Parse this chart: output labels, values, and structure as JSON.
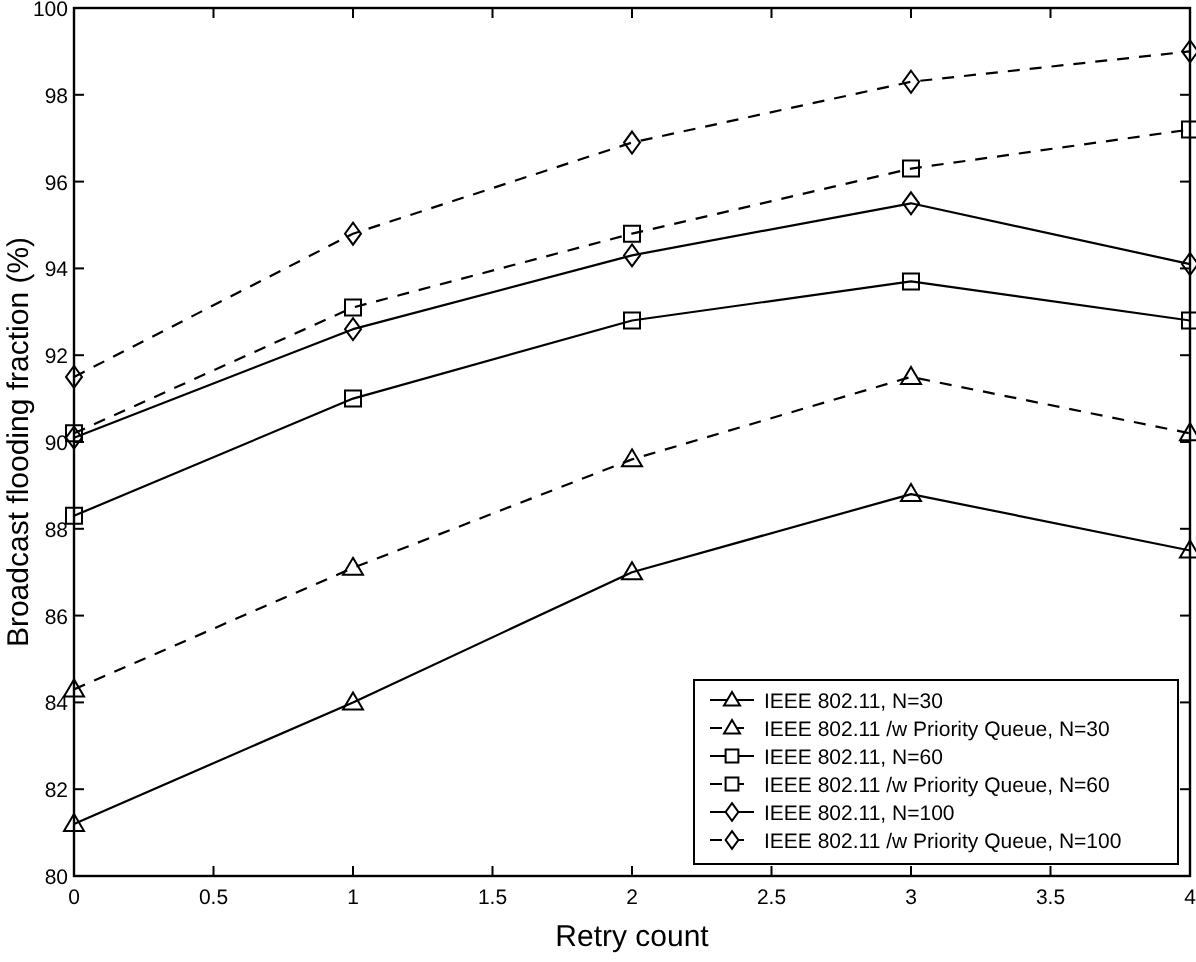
{
  "chart_data": {
    "type": "line",
    "xlabel": "Retry count",
    "ylabel": "Broadcast flooding fraction (%)",
    "x": [
      0,
      1,
      2,
      3,
      4
    ],
    "xlim": [
      0,
      4
    ],
    "xticks": [
      0,
      0.5,
      1,
      1.5,
      2,
      2.5,
      3,
      3.5,
      4
    ],
    "ylim": [
      80,
      100
    ],
    "yticks": [
      80,
      82,
      84,
      86,
      88,
      90,
      92,
      94,
      96,
      98,
      100
    ],
    "legend": "bottom right",
    "grid": false,
    "series": [
      {
        "name": "IEEE 802.11, N=30",
        "color": "#000000",
        "marker": "triangle",
        "line_style": "solid",
        "values": [
          81.2,
          84.0,
          87.0,
          88.8,
          87.5
        ]
      },
      {
        "name": "IEEE 802.11 /w Priority Queue, N=30",
        "color": "#000000",
        "marker": "triangle",
        "line_style": "dashed",
        "values": [
          84.3,
          87.1,
          89.6,
          91.5,
          90.2
        ]
      },
      {
        "name": "IEEE 802.11, N=60",
        "color": "#000000",
        "marker": "square",
        "line_style": "solid",
        "values": [
          88.3,
          91.0,
          92.8,
          93.7,
          92.8
        ]
      },
      {
        "name": "IEEE 802.11 /w Priority Queue, N=60",
        "color": "#000000",
        "marker": "square",
        "line_style": "dashed",
        "values": [
          90.2,
          93.1,
          94.8,
          96.3,
          97.2
        ]
      },
      {
        "name": "IEEE 802.11, N=100",
        "color": "#000000",
        "marker": "diamond",
        "line_style": "solid",
        "values": [
          90.1,
          92.6,
          94.3,
          95.5,
          94.1
        ]
      },
      {
        "name": "IEEE 802.11 /w Priority Queue, N=100",
        "color": "#000000",
        "marker": "diamond",
        "line_style": "dashed",
        "values": [
          91.5,
          94.8,
          96.9,
          98.3,
          99.0
        ]
      }
    ]
  }
}
